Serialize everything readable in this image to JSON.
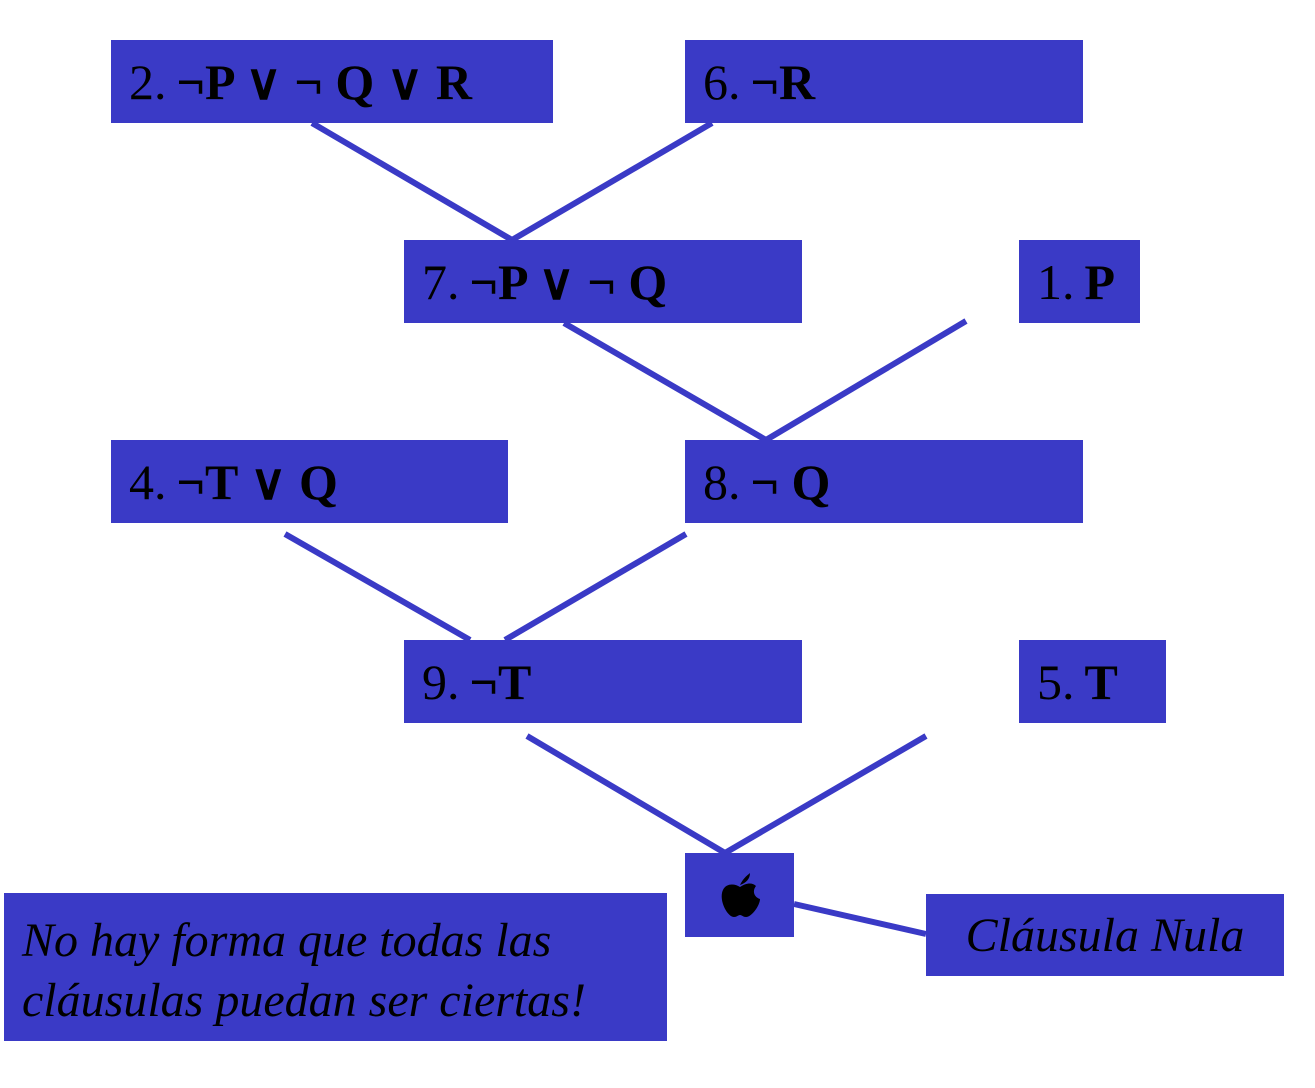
{
  "clauses": [
    {
      "id": "c2",
      "num": "2.",
      "expr": "¬P ∨ ¬ Q ∨ R"
    },
    {
      "id": "c6",
      "num": "6.",
      "expr": "¬R"
    },
    {
      "id": "c7",
      "num": "7.",
      "expr": "¬P ∨ ¬ Q"
    },
    {
      "id": "c1",
      "num": "1.",
      "expr": "P"
    },
    {
      "id": "c4",
      "num": "4.",
      "expr": "¬T ∨ Q"
    },
    {
      "id": "c8",
      "num": "8.",
      "expr": "¬ Q"
    },
    {
      "id": "c9",
      "num": "9.",
      "expr": "¬T"
    },
    {
      "id": "c5",
      "num": "5.",
      "expr": "T"
    }
  ],
  "null_clause": {
    "icon": "apple-icon",
    "label": "Cláusula Nula"
  },
  "note": {
    "line1": "No hay forma que todas las",
    "line2": "cláusulas puedan ser ciertas!"
  },
  "resolutions": [
    {
      "parents": [
        "c2",
        "c6"
      ],
      "child": "c7"
    },
    {
      "parents": [
        "c7",
        "c1"
      ],
      "child": "c8"
    },
    {
      "parents": [
        "c4",
        "c8"
      ],
      "child": "c9"
    },
    {
      "parents": [
        "c9",
        "c5"
      ],
      "child": "null"
    }
  ],
  "colors": {
    "box_fill": "#3a3ac6",
    "edge": "#3a3ac6",
    "text": "#000000",
    "background": "#ffffff"
  }
}
